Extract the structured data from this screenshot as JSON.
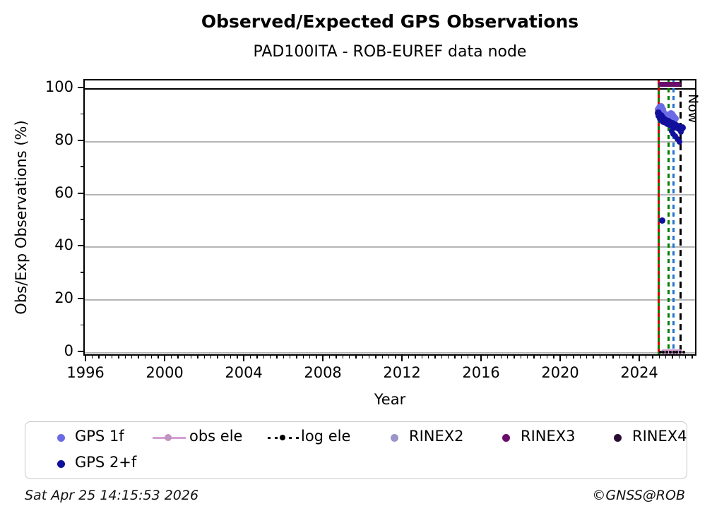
{
  "header": {
    "title": "Observed/Expected GPS Observations",
    "subtitle": "PAD100ITA - ROB-EUREF data node"
  },
  "chart_data": {
    "type": "scatter",
    "title": "Observed/Expected GPS Observations",
    "subtitle": "PAD100ITA - ROB-EUREF data node",
    "xlabel": "Year",
    "ylabel": "Obs/Exp Observations (%)",
    "xlim": [
      1995.89,
      2026.89
    ],
    "ylim": [
      -1.6,
      103.2
    ],
    "xticks": [
      1996,
      2000,
      2004,
      2008,
      2012,
      2016,
      2020,
      2024
    ],
    "yticks": [
      0,
      20,
      40,
      60,
      80,
      100
    ],
    "y_minor_ticks": [
      10,
      30,
      50,
      70,
      90
    ],
    "x_minor_step_years": 0.3333,
    "grid": true,
    "grid_color": "#b5b5b5",
    "hline_100": {
      "value": 100,
      "color": "#000000"
    },
    "series": [
      {
        "name": "GPS 1f",
        "color": "#6b6be6",
        "points": [
          [
            2024.9,
            92.2
          ],
          [
            2024.96,
            93.0
          ],
          [
            2025.03,
            93.2
          ],
          [
            2025.09,
            92.2
          ],
          [
            2025.0,
            91.0
          ],
          [
            2025.13,
            91.3
          ],
          [
            2025.06,
            90.3
          ],
          [
            2025.33,
            90.2
          ],
          [
            2025.4,
            88.9
          ],
          [
            2025.45,
            89.7
          ],
          [
            2025.53,
            90.6
          ],
          [
            2025.61,
            90.1
          ],
          [
            2025.69,
            89.4
          ],
          [
            2025.76,
            88.8
          ]
        ]
      },
      {
        "name": "GPS 2+f",
        "color": "#10109c",
        "points": [
          [
            2024.88,
            90.8
          ],
          [
            2024.93,
            89.7
          ],
          [
            2024.98,
            88.8
          ],
          [
            2025.03,
            89.9
          ],
          [
            2025.06,
            88.3
          ],
          [
            2025.11,
            89.1
          ],
          [
            2025.14,
            87.7
          ],
          [
            2025.19,
            88.5
          ],
          [
            2025.23,
            87.3
          ],
          [
            2025.28,
            88.0
          ],
          [
            2025.34,
            86.9
          ],
          [
            2025.39,
            87.6
          ],
          [
            2025.45,
            86.5
          ],
          [
            2025.51,
            87.2
          ],
          [
            2025.56,
            86.1
          ],
          [
            2025.61,
            86.9
          ],
          [
            2025.67,
            85.7
          ],
          [
            2025.73,
            86.3
          ],
          [
            2025.79,
            85.5
          ],
          [
            2025.86,
            85.9
          ],
          [
            2025.91,
            84.9
          ],
          [
            2025.98,
            85.3
          ],
          [
            2026.05,
            84.7
          ],
          [
            2026.1,
            85.4
          ],
          [
            2025.56,
            83.9,
            8
          ],
          [
            2025.63,
            83.0,
            8
          ],
          [
            2025.73,
            82.1,
            8
          ],
          [
            2025.86,
            81.1,
            8
          ],
          [
            2025.96,
            79.9,
            8
          ],
          [
            2026.02,
            83.6,
            8
          ],
          [
            2025.08,
            50.0,
            9
          ]
        ]
      }
    ],
    "availability_bars": [
      {
        "name": "RINEX3",
        "color": "#6a0d6a",
        "y": 101.8,
        "x_start": 2024.88,
        "x_end": 2026.03
      },
      {
        "name": "obs ele",
        "color": "#d2a0d2",
        "y": 0.3,
        "x_start": 2025.02,
        "x_end": 2026.12
      }
    ],
    "log_ele_markers": {
      "name": "log ele",
      "color": "#000000",
      "y": 0.3,
      "x_start": 2024.98,
      "x_end": 2026.18,
      "step": 0.17
    },
    "event_lines": [
      {
        "name": "red-green-dashed-line",
        "x": 2024.9,
        "style": "red-green",
        "color": "#007f00",
        "color2": "#d40000"
      },
      {
        "name": "green-dashed-line",
        "x": 2025.42,
        "style": "dashed",
        "color": "#007f00"
      },
      {
        "name": "blue-dashed-line",
        "x": 2025.66,
        "style": "dashed",
        "color": "#2575cf"
      },
      {
        "name": "now-line",
        "x": 2026.03,
        "style": "dashed-long",
        "color": "#000000",
        "label": "Now"
      }
    ]
  },
  "legend": {
    "entries": [
      {
        "label": "GPS 1f",
        "marker": "dot",
        "color": "#6b6be6"
      },
      {
        "label": "GPS 2+f",
        "marker": "dot",
        "color": "#10109c"
      },
      {
        "label": "obs ele",
        "marker": "line-dot",
        "color": "#d2a0d2"
      },
      {
        "label": "log ele",
        "marker": "dashed-line-dot",
        "color": "#000000"
      },
      {
        "label": "RINEX2",
        "marker": "dot",
        "color": "#9a96c8"
      },
      {
        "label": "RINEX3",
        "marker": "dot",
        "color": "#6a0d6a"
      },
      {
        "label": "RINEX4",
        "marker": "dot",
        "color": "#2a0d33"
      }
    ]
  },
  "footer": {
    "timestamp": "Sat Apr 25 14:15:53 2026",
    "credit": "©GNSS@ROB"
  }
}
